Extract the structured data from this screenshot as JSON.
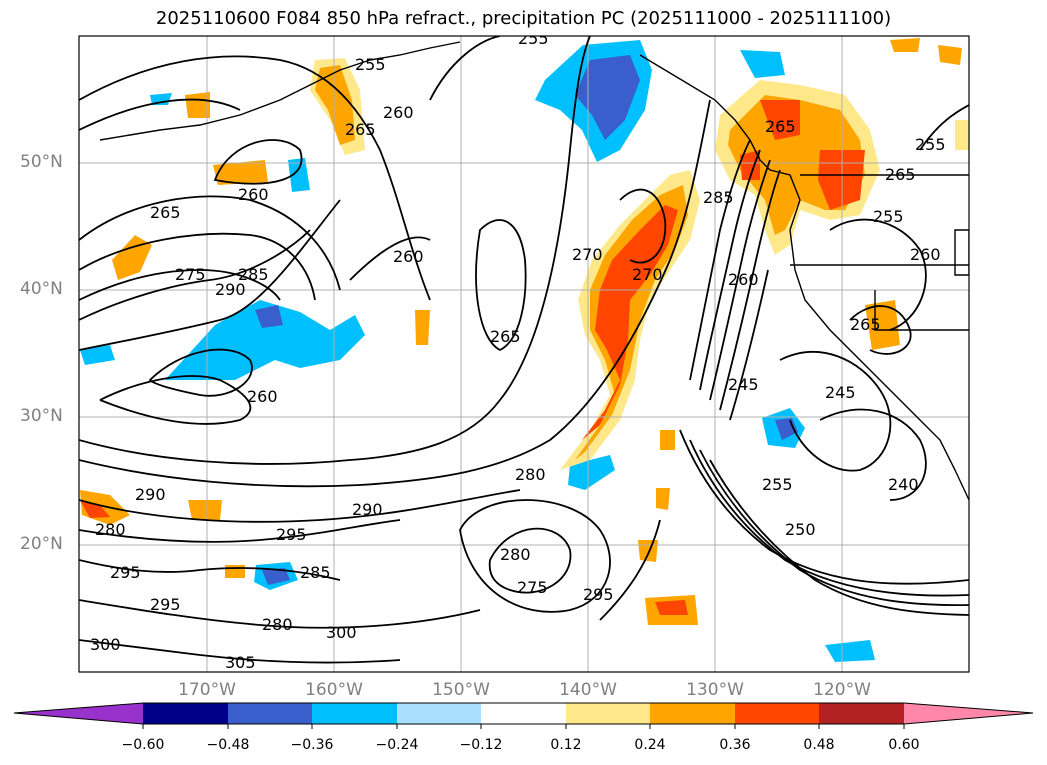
{
  "title": "2025110600 F084 850 hPa refract., precipitation PC (2025111000 - 2025111100)",
  "lat_labels": [
    "50°N",
    "40°N",
    "30°N",
    "20°N"
  ],
  "lon_labels": [
    "170°W",
    "160°W",
    "150°W",
    "140°W",
    "130°W",
    "120°W"
  ],
  "colorbar": {
    "ticks": [
      "−0.60",
      "−0.48",
      "−0.36",
      "−0.24",
      "−0.12",
      "0.12",
      "0.24",
      "0.36",
      "0.48",
      "0.60"
    ],
    "colors": [
      "#9932cc",
      "#00008b",
      "#3a5fcd",
      "#00bfff",
      "#aae0ff",
      "#ffffff",
      "#ffe88a",
      "#ffa500",
      "#ff4500",
      "#b22222",
      "#ff88aa"
    ]
  },
  "contour_labels": [
    "255",
    "255",
    "260",
    "265",
    "260",
    "265",
    "275",
    "290",
    "285",
    "260",
    "260",
    "270",
    "270",
    "285",
    "260",
    "265",
    "265",
    "255",
    "265",
    "255",
    "260",
    "265",
    "245",
    "245",
    "255",
    "240",
    "250",
    "280",
    "280",
    "290",
    "295",
    "295",
    "295",
    "285",
    "280",
    "300",
    "305",
    "275",
    "280",
    "295",
    "300",
    "290"
  ]
}
